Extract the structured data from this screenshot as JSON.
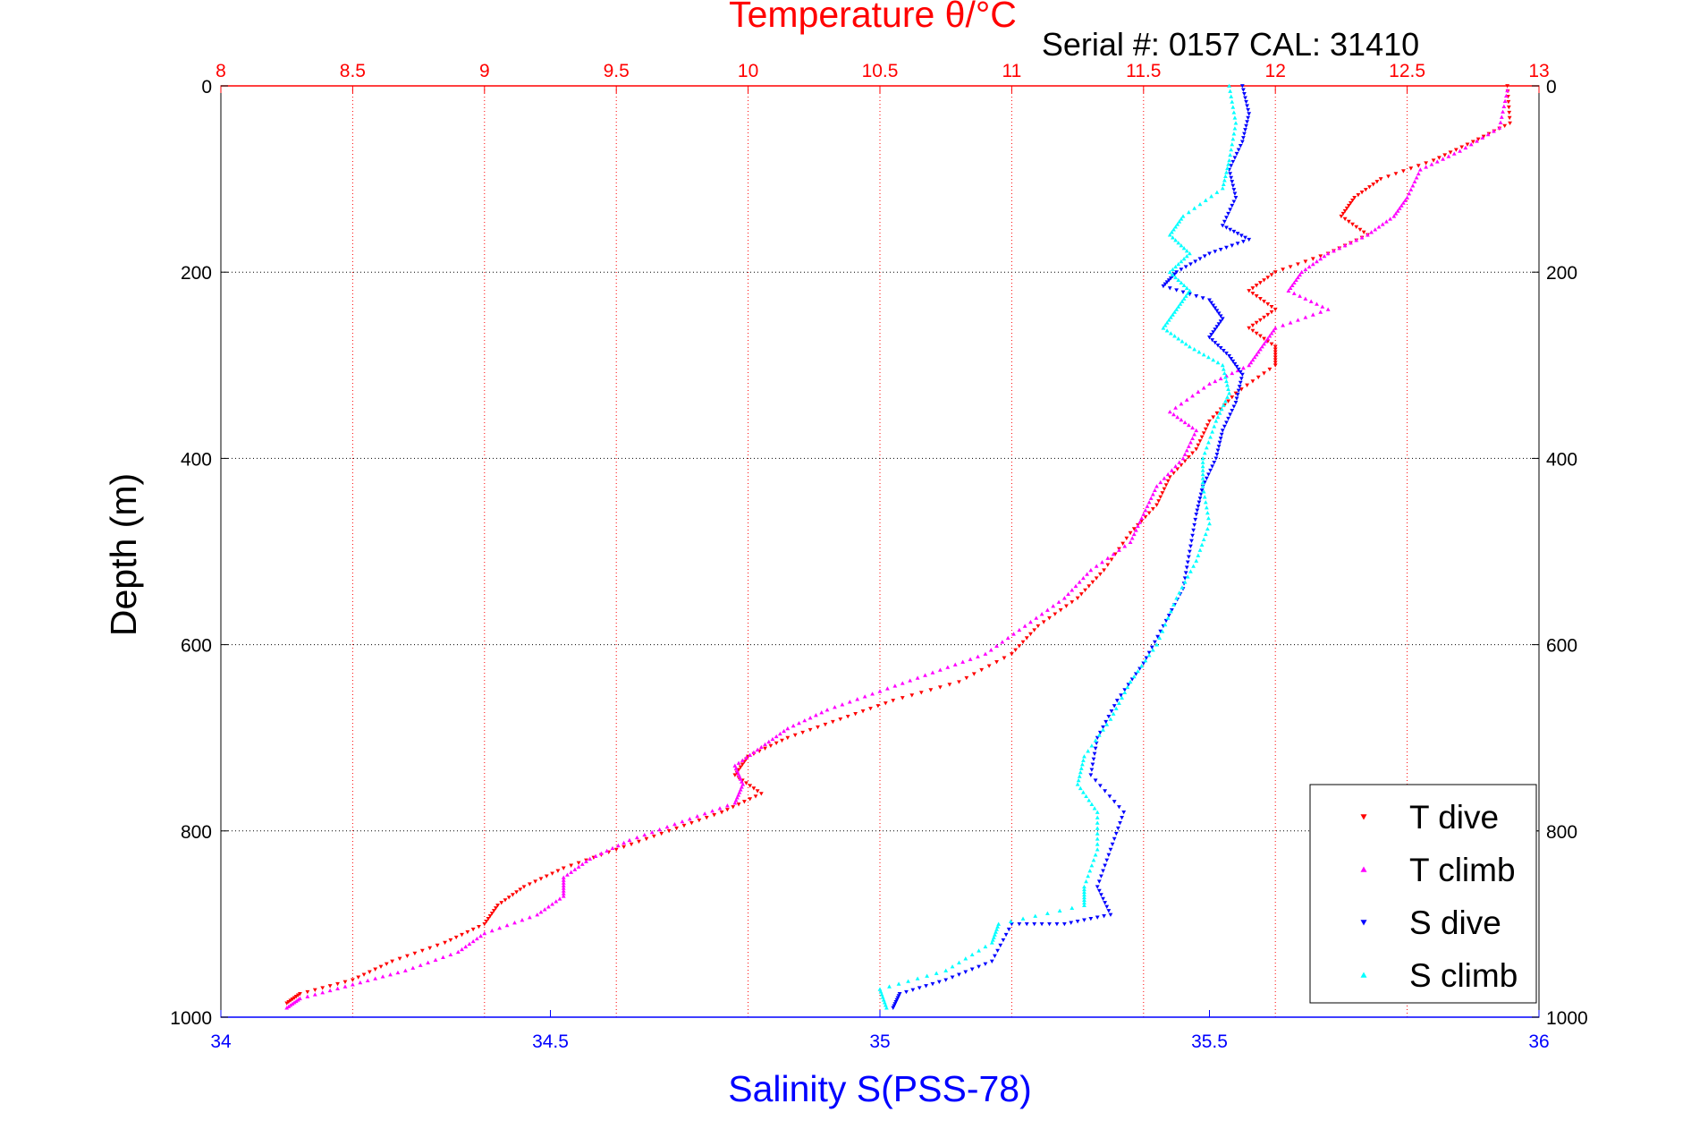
{
  "chart_data": {
    "type": "scatter",
    "title_top_axis": "Temperature θ/°C",
    "subtitle": "Serial #: 0157  CAL: 31410",
    "xlabel": "Salinity S(PSS-78)",
    "ylabel": "Depth (m)",
    "y_reversed": true,
    "ylim": [
      0,
      1000
    ],
    "y_ticks": [
      0,
      200,
      400,
      600,
      800,
      1000
    ],
    "top_axis": {
      "lim": [
        8,
        13
      ],
      "ticks": [
        "8",
        "8.5",
        "9",
        "9.5",
        "10",
        "10.5",
        "11",
        "11.5",
        "12",
        "12.5",
        "13"
      ],
      "color": "#ff0000"
    },
    "bottom_axis": {
      "lim": [
        34,
        36
      ],
      "ticks": [
        "34",
        "34.5",
        "35",
        "35.5",
        "36"
      ],
      "color": "#0000ff"
    },
    "grid": true,
    "legend_position": "bottom-right",
    "series": [
      {
        "name": "T dive",
        "axis": "top",
        "color": "#ff0000",
        "marker": "triangle-down",
        "points": [
          [
            12.88,
            0
          ],
          [
            12.89,
            40
          ],
          [
            12.75,
            60
          ],
          [
            12.6,
            80
          ],
          [
            12.4,
            100
          ],
          [
            12.3,
            120
          ],
          [
            12.25,
            140
          ],
          [
            12.35,
            160
          ],
          [
            12.2,
            180
          ],
          [
            12.0,
            200
          ],
          [
            11.9,
            220
          ],
          [
            12.0,
            240
          ],
          [
            11.9,
            260
          ],
          [
            12.0,
            280
          ],
          [
            12.0,
            300
          ],
          [
            11.85,
            330
          ],
          [
            11.75,
            360
          ],
          [
            11.7,
            390
          ],
          [
            11.6,
            420
          ],
          [
            11.55,
            450
          ],
          [
            11.45,
            480
          ],
          [
            11.35,
            520
          ],
          [
            11.25,
            550
          ],
          [
            11.1,
            580
          ],
          [
            11.0,
            610
          ],
          [
            10.8,
            640
          ],
          [
            10.55,
            660
          ],
          [
            10.35,
            680
          ],
          [
            10.15,
            700
          ],
          [
            10.0,
            720
          ],
          [
            9.95,
            740
          ],
          [
            10.05,
            760
          ],
          [
            9.9,
            780
          ],
          [
            9.7,
            800
          ],
          [
            9.5,
            820
          ],
          [
            9.3,
            840
          ],
          [
            9.15,
            860
          ],
          [
            9.05,
            880
          ],
          [
            9.0,
            900
          ],
          [
            8.85,
            920
          ],
          [
            8.65,
            940
          ],
          [
            8.5,
            960
          ],
          [
            8.3,
            975
          ],
          [
            8.25,
            985
          ]
        ]
      },
      {
        "name": "T climb",
        "axis": "top",
        "color": "#ff00ff",
        "marker": "triangle-up",
        "points": [
          [
            12.88,
            5
          ],
          [
            12.85,
            45
          ],
          [
            12.7,
            70
          ],
          [
            12.55,
            90
          ],
          [
            12.5,
            120
          ],
          [
            12.45,
            140
          ],
          [
            12.35,
            160
          ],
          [
            12.2,
            180
          ],
          [
            12.1,
            200
          ],
          [
            12.05,
            220
          ],
          [
            12.2,
            240
          ],
          [
            12.0,
            260
          ],
          [
            11.95,
            280
          ],
          [
            11.9,
            300
          ],
          [
            11.75,
            320
          ],
          [
            11.6,
            350
          ],
          [
            11.7,
            370
          ],
          [
            11.65,
            400
          ],
          [
            11.55,
            430
          ],
          [
            11.5,
            460
          ],
          [
            11.45,
            490
          ],
          [
            11.3,
            520
          ],
          [
            11.2,
            550
          ],
          [
            11.05,
            580
          ],
          [
            10.9,
            610
          ],
          [
            10.7,
            630
          ],
          [
            10.5,
            650
          ],
          [
            10.3,
            670
          ],
          [
            10.15,
            690
          ],
          [
            10.05,
            710
          ],
          [
            9.95,
            730
          ],
          [
            9.98,
            750
          ],
          [
            9.95,
            770
          ],
          [
            9.75,
            790
          ],
          [
            9.55,
            810
          ],
          [
            9.4,
            830
          ],
          [
            9.3,
            850
          ],
          [
            9.3,
            870
          ],
          [
            9.2,
            890
          ],
          [
            9.0,
            910
          ],
          [
            8.9,
            930
          ],
          [
            8.7,
            950
          ],
          [
            8.5,
            965
          ],
          [
            8.3,
            980
          ],
          [
            8.25,
            990
          ]
        ]
      },
      {
        "name": "S dive",
        "axis": "bottom",
        "color": "#0000ff",
        "marker": "triangle-down",
        "points": [
          [
            35.55,
            0
          ],
          [
            35.56,
            30
          ],
          [
            35.55,
            60
          ],
          [
            35.53,
            90
          ],
          [
            35.54,
            120
          ],
          [
            35.52,
            150
          ],
          [
            35.56,
            165
          ],
          [
            35.5,
            180
          ],
          [
            35.45,
            200
          ],
          [
            35.43,
            215
          ],
          [
            35.5,
            230
          ],
          [
            35.52,
            250
          ],
          [
            35.5,
            270
          ],
          [
            35.53,
            290
          ],
          [
            35.55,
            310
          ],
          [
            35.54,
            340
          ],
          [
            35.52,
            370
          ],
          [
            35.51,
            400
          ],
          [
            35.49,
            430
          ],
          [
            35.48,
            460
          ],
          [
            35.47,
            500
          ],
          [
            35.46,
            540
          ],
          [
            35.43,
            580
          ],
          [
            35.4,
            620
          ],
          [
            35.36,
            660
          ],
          [
            35.33,
            700
          ],
          [
            35.32,
            740
          ],
          [
            35.37,
            780
          ],
          [
            35.35,
            820
          ],
          [
            35.33,
            860
          ],
          [
            35.35,
            890
          ],
          [
            35.28,
            900
          ],
          [
            35.2,
            900
          ],
          [
            35.17,
            940
          ],
          [
            35.1,
            960
          ],
          [
            35.03,
            975
          ],
          [
            35.02,
            990
          ]
        ]
      },
      {
        "name": "S climb",
        "axis": "bottom",
        "color": "#00ffff",
        "marker": "triangle-up",
        "points": [
          [
            35.53,
            0
          ],
          [
            35.54,
            40
          ],
          [
            35.53,
            80
          ],
          [
            35.52,
            110
          ],
          [
            35.46,
            140
          ],
          [
            35.44,
            160
          ],
          [
            35.47,
            180
          ],
          [
            35.44,
            200
          ],
          [
            35.47,
            220
          ],
          [
            35.45,
            240
          ],
          [
            35.43,
            260
          ],
          [
            35.47,
            280
          ],
          [
            35.52,
            300
          ],
          [
            35.53,
            330
          ],
          [
            35.51,
            360
          ],
          [
            35.49,
            400
          ],
          [
            35.49,
            430
          ],
          [
            35.5,
            470
          ],
          [
            35.48,
            510
          ],
          [
            35.45,
            550
          ],
          [
            35.42,
            600
          ],
          [
            35.38,
            640
          ],
          [
            35.35,
            680
          ],
          [
            35.31,
            720
          ],
          [
            35.3,
            750
          ],
          [
            35.33,
            780
          ],
          [
            35.33,
            820
          ],
          [
            35.31,
            860
          ],
          [
            35.31,
            880
          ],
          [
            35.18,
            900
          ],
          [
            35.17,
            920
          ],
          [
            35.1,
            950
          ],
          [
            35.0,
            970
          ],
          [
            35.01,
            990
          ]
        ]
      }
    ],
    "legend": [
      "T dive",
      "T climb",
      "S dive",
      "S climb"
    ]
  }
}
